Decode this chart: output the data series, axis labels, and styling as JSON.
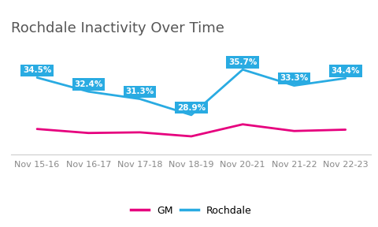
{
  "title": "Rochdale Inactivity Over Time",
  "x_labels": [
    "Nov 15-16",
    "Nov 16-17",
    "Nov 17-18",
    "Nov 18-19",
    "Nov 20-21",
    "Nov 21-22",
    "Nov 22-23"
  ],
  "rochdale_values": [
    34.5,
    32.4,
    31.3,
    28.9,
    35.7,
    33.3,
    34.4
  ],
  "gm_values": [
    26.8,
    26.2,
    26.3,
    25.7,
    27.5,
    26.5,
    26.7
  ],
  "rochdale_color": "#29abe2",
  "gm_color": "#e6007e",
  "annotation_bg_color": "#29abe2",
  "annotation_text_color": "#ffffff",
  "title_fontsize": 13,
  "tick_fontsize": 8,
  "legend_fontsize": 9,
  "line_width": 2.0,
  "ylim": [
    23,
    40
  ],
  "background_color": "#ffffff"
}
